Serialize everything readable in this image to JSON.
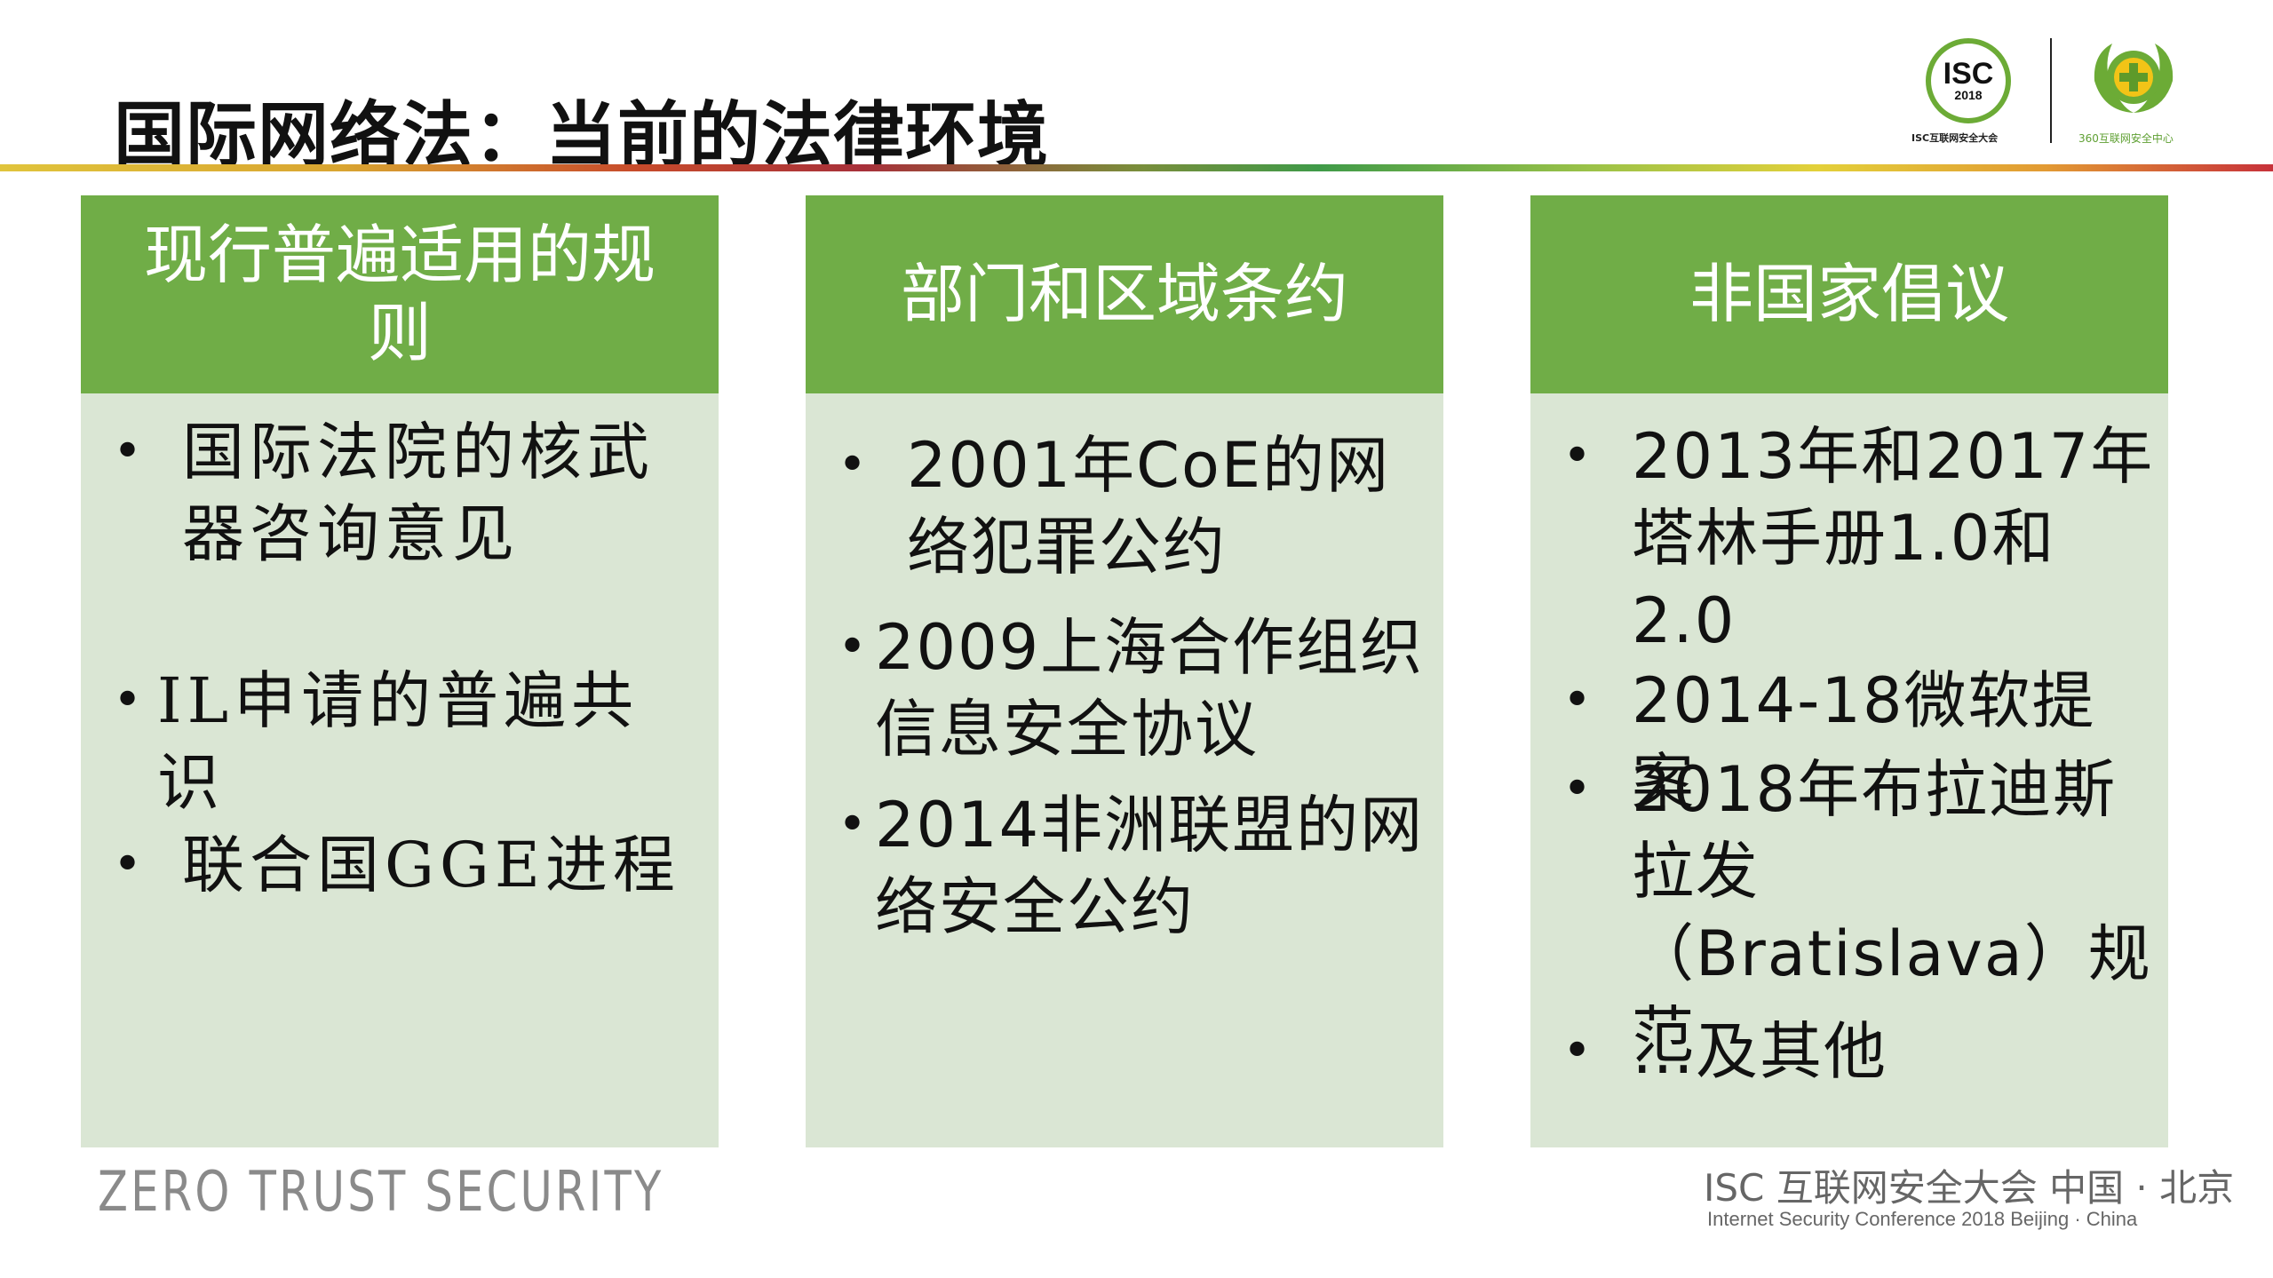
{
  "slide": {
    "title": "国际网络法：当前的法律环境"
  },
  "logos": {
    "isc_mark": "ISC",
    "isc_year": "2018",
    "isc_caption": "ISC互联网安全大会",
    "center_caption": "360互联网安全中心"
  },
  "columns": [
    {
      "header": "现行普遍适用的规则",
      "items": [
        "国际法院的核武器咨询意见",
        "IL申请的普遍共识",
        "联合国GGE进程"
      ]
    },
    {
      "header": "部门和区域条约",
      "items": [
        "2001年CoE的网络犯罪公约",
        "2009上海合作组织信息安全协议",
        "2014非洲联盟的网络安全公约"
      ]
    },
    {
      "header": "非国家倡议",
      "items": [
        "2013年和2017年塔林手册1.0和2.0",
        "2014-18微软提案",
        "2018年布拉迪斯拉发（Bratislava）规范",
        "…及其他"
      ]
    }
  ],
  "footer": {
    "left_text": "ZERO TRUST SECURITY",
    "right_line1": "ISC 互联网安全大会 中国 · 北京",
    "right_line2": "Internet Security Conference 2018   Beijing · China"
  },
  "colors": {
    "header_green": "#70ad47",
    "body_green": "#dae6d4",
    "logo_green": "#6cab36"
  }
}
